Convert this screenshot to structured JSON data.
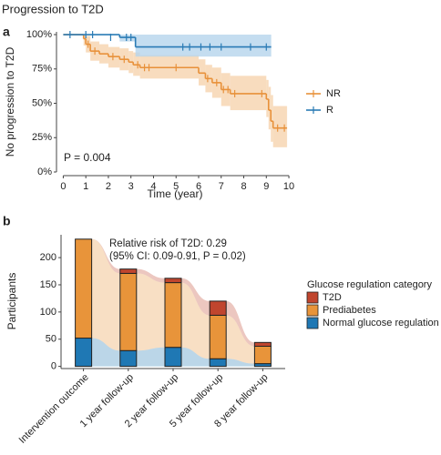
{
  "header": {
    "title": "Progression to T2D"
  },
  "chart_data": [
    {
      "type": "km",
      "panel": "a",
      "xlabel": "Time (year)",
      "ylabel": "No progression to T2D",
      "xlim": [
        -0.3,
        10.2
      ],
      "xticks": [
        0,
        1,
        2,
        3,
        4,
        5,
        6,
        7,
        8,
        9,
        10
      ],
      "ylim": [
        0,
        102
      ],
      "yticks": [
        {
          "value": 0,
          "label": "0%"
        },
        {
          "value": 25,
          "label": "25%"
        },
        {
          "value": 50,
          "label": "50%"
        },
        {
          "value": 75,
          "label": "75%"
        },
        {
          "value": 100,
          "label": "100%"
        }
      ],
      "annotation": "P = 0.004",
      "series": [
        {
          "name": "NR",
          "color": "#e8913a",
          "band_color": "#f6d3ae",
          "x": [
            0,
            0.9,
            1.0,
            1.2,
            1.6,
            2.0,
            2.5,
            2.9,
            3.1,
            3.4,
            6.0,
            6.3,
            6.6,
            7.0,
            7.4,
            9.0,
            9.1,
            9.2,
            9.3,
            9.9
          ],
          "values": [
            100,
            97,
            93,
            88,
            86,
            84,
            82,
            80,
            78,
            76,
            72,
            68,
            65,
            60,
            57,
            53,
            45,
            37,
            32,
            32
          ],
          "lower": [
            100,
            92,
            87,
            81,
            79,
            76,
            74,
            72,
            70,
            68,
            63,
            58,
            54,
            48,
            45,
            40,
            31,
            22,
            18,
            18
          ],
          "upper": [
            100,
            100,
            99,
            95,
            93,
            91,
            90,
            88,
            87,
            85,
            82,
            78,
            76,
            72,
            70,
            67,
            62,
            56,
            48,
            48
          ],
          "censor_x": [
            1.1,
            1.4,
            2.2,
            2.7,
            3.3,
            3.6,
            3.8,
            5.0,
            6.4,
            6.8,
            7.1,
            7.3,
            7.6,
            8.8,
            9.5,
            9.8
          ],
          "censor_values": [
            93,
            88,
            84,
            82,
            78,
            76,
            76,
            76,
            68,
            65,
            60,
            60,
            57,
            57,
            32,
            32
          ]
        },
        {
          "name": "R",
          "color": "#2a7bb5",
          "band_color": "#b5d5ec",
          "x": [
            0,
            2.5,
            3.2,
            9.2
          ],
          "values": [
            100,
            98,
            91,
            91
          ],
          "lower": [
            100,
            95,
            84,
            84
          ],
          "upper": [
            100,
            100,
            100,
            100
          ],
          "censor_x": [
            0.3,
            1.0,
            1.3,
            2.1,
            2.8,
            3.0,
            5.3,
            5.6,
            6.1,
            6.5,
            7.0,
            8.3,
            9.0
          ],
          "censor_values": [
            100,
            100,
            100,
            98,
            98,
            98,
            91,
            91,
            91,
            91,
            91,
            91,
            91
          ]
        }
      ]
    },
    {
      "type": "stacked_bar",
      "panel": "b",
      "ylabel": "Participants",
      "ylim": [
        -4,
        242
      ],
      "yticks": [
        0,
        50,
        100,
        150,
        200
      ],
      "categories": [
        "Intervention outcome",
        "1 year follow-up",
        "2 year follow-up",
        "5 year follow-up",
        "8 year follow-up"
      ],
      "annotation": [
        "Relative risk of T2D: 0.29",
        "(95% CI: 0.09-0.91, P = 0.02)"
      ],
      "legend_title": "Glucose regulation category",
      "series": [
        {
          "name": "Normal glucose regulation",
          "color": "#1f78b4",
          "values": [
            52,
            29,
            35,
            14,
            5
          ]
        },
        {
          "name": "Prediabetes",
          "color": "#e8943a",
          "values": [
            182,
            142,
            119,
            80,
            32
          ]
        },
        {
          "name": "T2D",
          "color": "#c0452e",
          "values": [
            0,
            8,
            8,
            26,
            7
          ]
        }
      ]
    }
  ]
}
